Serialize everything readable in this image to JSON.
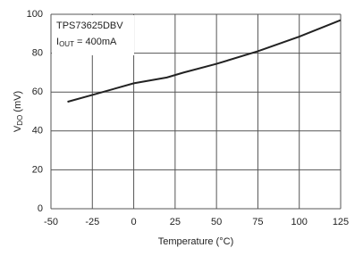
{
  "chart_data": {
    "type": "line",
    "annotation": {
      "line1": "TPS73625DBV",
      "line2": {
        "main": "I",
        "sub": "OUT",
        "rest": " = 400mA"
      }
    },
    "xlabel": "Temperature (°C)",
    "ylabel": {
      "main": "V",
      "sub": "DO",
      "rest": " (mV)"
    },
    "x": [
      -40,
      -25,
      0,
      10,
      20,
      30,
      50,
      75,
      100,
      125
    ],
    "values": [
      55,
      58.5,
      64.5,
      66,
      67.5,
      70,
      74.5,
      81,
      88.5,
      97
    ],
    "color": "#222222",
    "xlim": [
      -50,
      125
    ],
    "xticks": [
      -50,
      -25,
      0,
      25,
      50,
      75,
      100,
      125
    ],
    "ylim": [
      0,
      100
    ],
    "yticks": [
      0,
      20,
      40,
      60,
      80,
      100
    ],
    "grid": true
  }
}
